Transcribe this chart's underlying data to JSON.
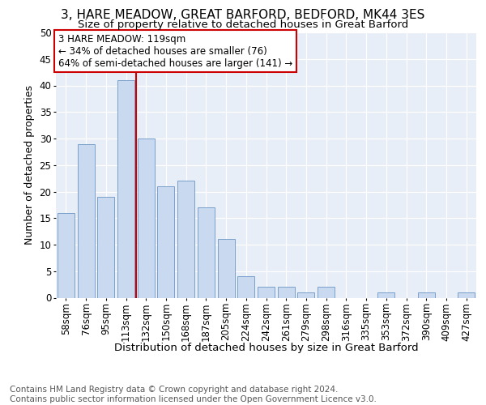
{
  "title": "3, HARE MEADOW, GREAT BARFORD, BEDFORD, MK44 3ES",
  "subtitle": "Size of property relative to detached houses in Great Barford",
  "xlabel": "Distribution of detached houses by size in Great Barford",
  "ylabel": "Number of detached properties",
  "categories": [
    "58sqm",
    "76sqm",
    "95sqm",
    "113sqm",
    "132sqm",
    "150sqm",
    "168sqm",
    "187sqm",
    "205sqm",
    "224sqm",
    "242sqm",
    "261sqm",
    "279sqm",
    "298sqm",
    "316sqm",
    "335sqm",
    "353sqm",
    "372sqm",
    "390sqm",
    "409sqm",
    "427sqm"
  ],
  "values": [
    16,
    29,
    19,
    41,
    30,
    21,
    22,
    17,
    11,
    4,
    2,
    2,
    1,
    2,
    0,
    0,
    1,
    0,
    1,
    0,
    1
  ],
  "bar_color": "#c9d9f0",
  "bar_edge_color": "#7aa0cb",
  "red_line_x": 3.5,
  "annotation_line1": "3 HARE MEADOW: 119sqm",
  "annotation_line2": "← 34% of detached houses are smaller (76)",
  "annotation_line3": "64% of semi-detached houses are larger (141) →",
  "annotation_box_color": "#ffffff",
  "annotation_box_edge_color": "#cc0000",
  "background_color": "#e8eef7",
  "ylim": [
    0,
    50
  ],
  "yticks": [
    0,
    5,
    10,
    15,
    20,
    25,
    30,
    35,
    40,
    45,
    50
  ],
  "footer_text": "Contains HM Land Registry data © Crown copyright and database right 2024.\nContains public sector information licensed under the Open Government Licence v3.0.",
  "title_fontsize": 11,
  "subtitle_fontsize": 9.5,
  "xlabel_fontsize": 9.5,
  "ylabel_fontsize": 9,
  "tick_fontsize": 8.5,
  "annotation_fontsize": 8.5,
  "footer_fontsize": 7.5
}
